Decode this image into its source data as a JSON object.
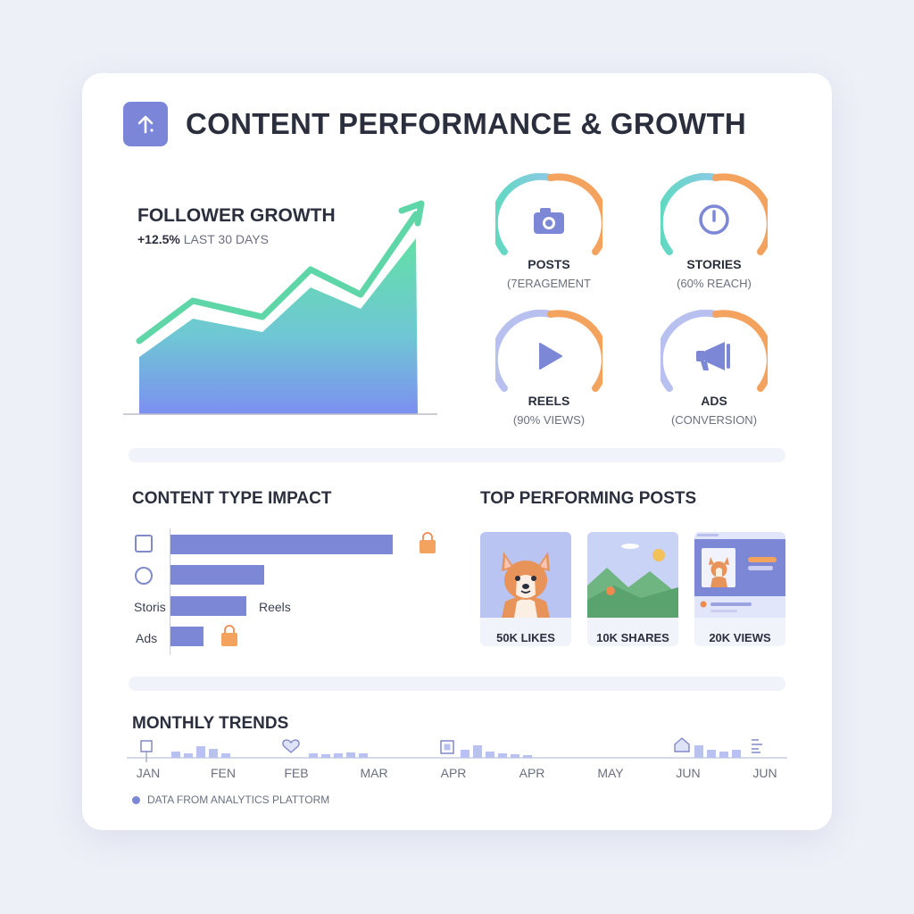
{
  "header": {
    "title": "CONTENT PERFORMANCE & GROWTH",
    "icon": "arrow-up-icon",
    "icon_color": "#7b86d9"
  },
  "follower_growth": {
    "title": "FOLLOWER GROWTH",
    "change": "+12.5%",
    "period": "LAST 30 DAYS",
    "colors": {
      "line": "#5fd6a8",
      "fill_top": "#62e0a6",
      "fill_bottom": "#7c8ff0"
    }
  },
  "gauges": [
    {
      "label": "POSTS",
      "sub": "(7ERAGEMENT",
      "icon": "camera-icon"
    },
    {
      "label": "STORIES",
      "sub": "(60% REACH)",
      "icon": "clock-icon"
    },
    {
      "label": "REELS",
      "sub": "(90% VIEWS)",
      "icon": "play-icon"
    },
    {
      "label": "ADS",
      "sub": "(CONVERSION)",
      "icon": "megaphone-icon"
    }
  ],
  "content_type_impact": {
    "title": "CONTENT TYPE IMPACT",
    "rows": [
      {
        "label": "",
        "icon": "square-icon",
        "value": 1.0
      },
      {
        "label": "",
        "icon": "circle-icon",
        "value": 0.42
      },
      {
        "label": "Storis",
        "value": 0.34,
        "end_label": "Reels"
      },
      {
        "label": "Ads",
        "value": 0.15
      }
    ],
    "bar_color": "#7c87d6"
  },
  "top_posts": {
    "title": "TOP PERFORMING POSTS",
    "items": [
      {
        "caption": "50K LIKES",
        "thumb": "corgi-image"
      },
      {
        "caption": "10K SHARES",
        "thumb": "landscape-image"
      },
      {
        "caption": "20K VIEWS",
        "thumb": "profile-card-image"
      }
    ]
  },
  "monthly_trends": {
    "title": "MONTHLY TRENDS",
    "months": [
      "JAN",
      "FEN",
      "FEB",
      "MAR",
      "APR",
      "APR",
      "MAY",
      "JUN",
      "JUN"
    ],
    "source": "DATA FROM ANALYTICS PLATTORM"
  }
}
